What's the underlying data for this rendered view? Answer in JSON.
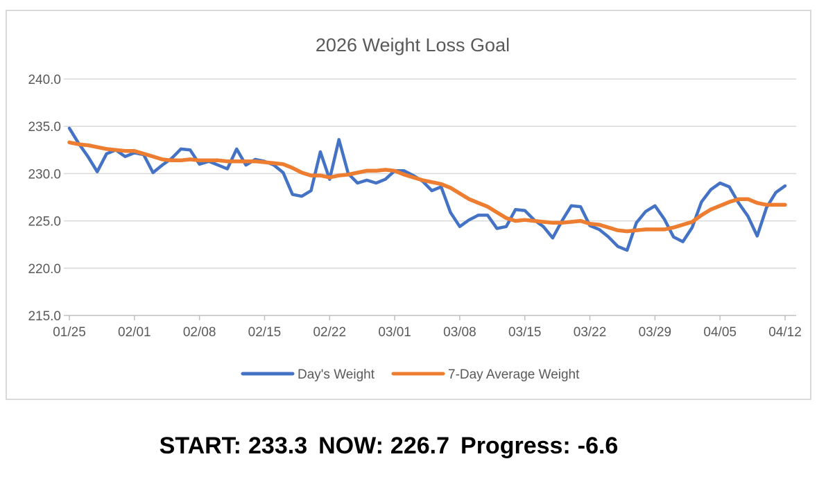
{
  "chart": {
    "colors": {
      "days_weight": "#4472C4",
      "avg_weight": "#ED7D31",
      "gridline": "#D9D9D9",
      "axis_line": "#BFBFBF",
      "text": "#595959",
      "frame_border": "#D9D9D9",
      "footer_text": "#000000"
    }
  },
  "chart_data": {
    "type": "line",
    "title": "2026 Weight Loss Goal",
    "xlabel": "",
    "ylabel": "",
    "ylim": [
      215.0,
      240.0
    ],
    "grid": "horizontal",
    "legend_position": "bottom",
    "y_tick_labels": [
      "240.0",
      "235.0",
      "230.0",
      "225.0",
      "220.0",
      "215.0"
    ],
    "y_tick_values": [
      240.0,
      235.0,
      230.0,
      225.0,
      220.0,
      215.0
    ],
    "x_tick_labels": [
      "01/25",
      "02/01",
      "02/08",
      "02/15",
      "02/22",
      "03/01",
      "03/08",
      "03/15",
      "03/22",
      "03/29",
      "04/05",
      "04/12"
    ],
    "x": [
      "01/25",
      "01/26",
      "01/27",
      "01/28",
      "01/29",
      "01/30",
      "01/31",
      "02/01",
      "02/02",
      "02/03",
      "02/04",
      "02/05",
      "02/06",
      "02/07",
      "02/08",
      "02/09",
      "02/10",
      "02/11",
      "02/12",
      "02/13",
      "02/14",
      "02/15",
      "02/16",
      "02/17",
      "02/18",
      "02/19",
      "02/20",
      "02/21",
      "02/22",
      "02/23",
      "02/24",
      "02/25",
      "02/26",
      "02/27",
      "02/28",
      "03/01",
      "03/02",
      "03/03",
      "03/04",
      "03/05",
      "03/06",
      "03/07",
      "03/08",
      "03/09",
      "03/10",
      "03/11",
      "03/12",
      "03/13",
      "03/14",
      "03/15",
      "03/16",
      "03/17",
      "03/18",
      "03/19",
      "03/20",
      "03/21",
      "03/22",
      "03/23",
      "03/24",
      "03/25",
      "03/26",
      "03/27",
      "03/28",
      "03/29",
      "03/30",
      "03/31",
      "04/01",
      "04/02",
      "04/03",
      "04/04",
      "04/05",
      "04/06",
      "04/07",
      "04/08",
      "04/09",
      "04/10",
      "04/11",
      "04/12"
    ],
    "series": [
      {
        "name": "Day's Weight",
        "color": "#4472C4",
        "values": [
          234.8,
          233.2,
          231.8,
          230.2,
          232.1,
          232.5,
          231.8,
          232.2,
          232.0,
          230.1,
          230.9,
          231.6,
          232.6,
          232.5,
          231.0,
          231.3,
          230.9,
          230.5,
          232.6,
          230.9,
          231.5,
          231.3,
          230.9,
          230.1,
          227.8,
          227.6,
          228.2,
          232.3,
          229.4,
          233.6,
          230.0,
          229.0,
          229.3,
          229.0,
          229.4,
          230.3,
          230.3,
          229.8,
          229.2,
          228.2,
          228.6,
          225.9,
          224.4,
          225.1,
          225.6,
          225.6,
          224.2,
          224.4,
          226.2,
          226.1,
          225.1,
          224.4,
          223.2,
          225.0,
          226.6,
          226.5,
          224.5,
          224.1,
          223.3,
          222.3,
          221.9,
          224.8,
          226.0,
          226.6,
          225.2,
          223.3,
          222.8,
          224.3,
          227.0,
          228.3,
          229.0,
          228.6,
          226.9,
          225.5,
          223.4,
          226.4,
          228.0,
          228.7
        ]
      },
      {
        "name": "7-Day Average Weight",
        "color": "#ED7D31",
        "values": [
          233.3,
          233.1,
          233.0,
          232.8,
          232.6,
          232.5,
          232.4,
          232.4,
          232.1,
          231.8,
          231.5,
          231.4,
          231.4,
          231.5,
          231.4,
          231.4,
          231.4,
          231.3,
          231.3,
          231.3,
          231.3,
          231.2,
          231.1,
          231.0,
          230.6,
          230.1,
          229.8,
          229.8,
          229.6,
          229.8,
          229.9,
          230.1,
          230.3,
          230.3,
          230.4,
          230.3,
          229.9,
          229.6,
          229.3,
          229.1,
          228.9,
          228.5,
          227.9,
          227.3,
          226.9,
          226.5,
          225.9,
          225.3,
          225.0,
          225.1,
          225.0,
          224.9,
          224.8,
          224.8,
          224.9,
          225.0,
          224.7,
          224.6,
          224.3,
          224.0,
          223.9,
          224.0,
          224.1,
          224.1,
          224.1,
          224.3,
          224.6,
          224.9,
          225.6,
          226.2,
          226.6,
          227.0,
          227.3,
          227.3,
          226.9,
          226.7,
          226.7,
          226.7
        ]
      }
    ]
  },
  "footer": {
    "start_label": "START:",
    "start_value": "233.3",
    "now_label": "NOW:",
    "now_value": "226.7",
    "progress_label": "Progress:",
    "progress_value": "-6.6"
  }
}
